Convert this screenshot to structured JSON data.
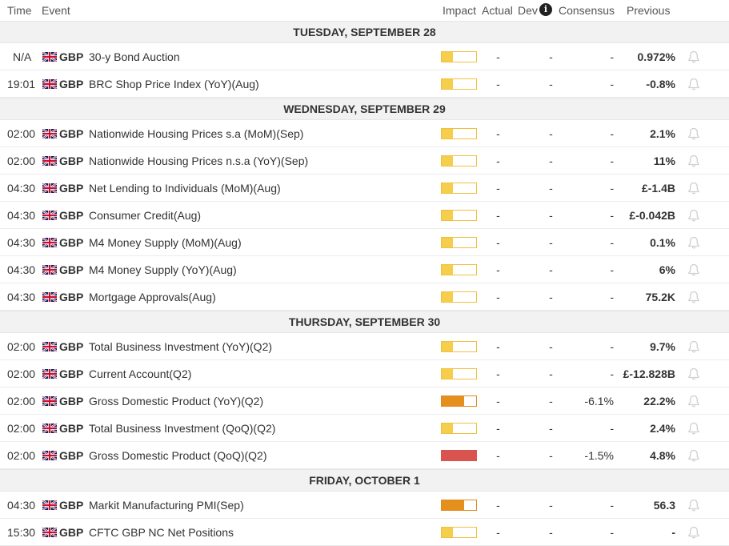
{
  "header": {
    "time": "Time",
    "event": "Event",
    "impact": "Impact",
    "actual": "Actual",
    "dev": "Dev",
    "consensus": "Consensus",
    "previous": "Previous",
    "info_icon": "i"
  },
  "days": [
    {
      "label": "TUESDAY, SEPTEMBER 28",
      "rows": [
        {
          "time": "N/A",
          "currency": "GBP",
          "event": "30-y Bond Auction",
          "impact": "low",
          "actual": "-",
          "dev": "-",
          "consensus": "-",
          "previous": "0.972%"
        },
        {
          "time": "19:01",
          "currency": "GBP",
          "event": "BRC Shop Price Index (YoY)(Aug)",
          "impact": "low",
          "actual": "-",
          "dev": "-",
          "consensus": "-",
          "previous": "-0.8%"
        }
      ]
    },
    {
      "label": "WEDNESDAY, SEPTEMBER 29",
      "rows": [
        {
          "time": "02:00",
          "currency": "GBP",
          "event": "Nationwide Housing Prices s.a (MoM)(Sep)",
          "impact": "low",
          "actual": "-",
          "dev": "-",
          "consensus": "-",
          "previous": "2.1%"
        },
        {
          "time": "02:00",
          "currency": "GBP",
          "event": "Nationwide Housing Prices n.s.a (YoY)(Sep)",
          "impact": "low",
          "actual": "-",
          "dev": "-",
          "consensus": "-",
          "previous": "11%"
        },
        {
          "time": "04:30",
          "currency": "GBP",
          "event": "Net Lending to Individuals (MoM)(Aug)",
          "impact": "low",
          "actual": "-",
          "dev": "-",
          "consensus": "-",
          "previous": "£-1.4B"
        },
        {
          "time": "04:30",
          "currency": "GBP",
          "event": "Consumer Credit(Aug)",
          "impact": "low",
          "actual": "-",
          "dev": "-",
          "consensus": "-",
          "previous": "£-0.042B"
        },
        {
          "time": "04:30",
          "currency": "GBP",
          "event": "M4 Money Supply (MoM)(Aug)",
          "impact": "low",
          "actual": "-",
          "dev": "-",
          "consensus": "-",
          "previous": "0.1%"
        },
        {
          "time": "04:30",
          "currency": "GBP",
          "event": "M4 Money Supply (YoY)(Aug)",
          "impact": "low",
          "actual": "-",
          "dev": "-",
          "consensus": "-",
          "previous": "6%"
        },
        {
          "time": "04:30",
          "currency": "GBP",
          "event": "Mortgage Approvals(Aug)",
          "impact": "low",
          "actual": "-",
          "dev": "-",
          "consensus": "-",
          "previous": "75.2K"
        }
      ]
    },
    {
      "label": "THURSDAY, SEPTEMBER 30",
      "rows": [
        {
          "time": "02:00",
          "currency": "GBP",
          "event": "Total Business Investment (YoY)(Q2)",
          "impact": "low",
          "actual": "-",
          "dev": "-",
          "consensus": "-",
          "previous": "9.7%"
        },
        {
          "time": "02:00",
          "currency": "GBP",
          "event": "Current Account(Q2)",
          "impact": "low",
          "actual": "-",
          "dev": "-",
          "consensus": "-",
          "previous": "£-12.828B"
        },
        {
          "time": "02:00",
          "currency": "GBP",
          "event": "Gross Domestic Product (YoY)(Q2)",
          "impact": "medium",
          "actual": "-",
          "dev": "-",
          "consensus": "-6.1%",
          "previous": "22.2%"
        },
        {
          "time": "02:00",
          "currency": "GBP",
          "event": "Total Business Investment (QoQ)(Q2)",
          "impact": "low",
          "actual": "-",
          "dev": "-",
          "consensus": "-",
          "previous": "2.4%"
        },
        {
          "time": "02:00",
          "currency": "GBP",
          "event": "Gross Domestic Product (QoQ)(Q2)",
          "impact": "high",
          "actual": "-",
          "dev": "-",
          "consensus": "-1.5%",
          "previous": "4.8%"
        }
      ]
    },
    {
      "label": "FRIDAY, OCTOBER 1",
      "rows": [
        {
          "time": "04:30",
          "currency": "GBP",
          "event": "Markit Manufacturing PMI(Sep)",
          "impact": "medium",
          "actual": "-",
          "dev": "-",
          "consensus": "-",
          "previous": "56.3"
        },
        {
          "time": "15:30",
          "currency": "GBP",
          "event": "CFTC GBP NC Net Positions",
          "impact": "low",
          "actual": "-",
          "dev": "-",
          "consensus": "-",
          "previous": "-"
        }
      ]
    }
  ],
  "icons": {
    "flag": "uk-flag-icon",
    "bell": "bell-icon",
    "info": "info-icon"
  },
  "impact_levels": {
    "low": 0.33,
    "medium": 0.66,
    "high": 1.0
  },
  "colors": {
    "low": "#f5cf4c",
    "medium": "#e5901d",
    "high": "#d9534f",
    "bell": "#d0d0d0"
  }
}
